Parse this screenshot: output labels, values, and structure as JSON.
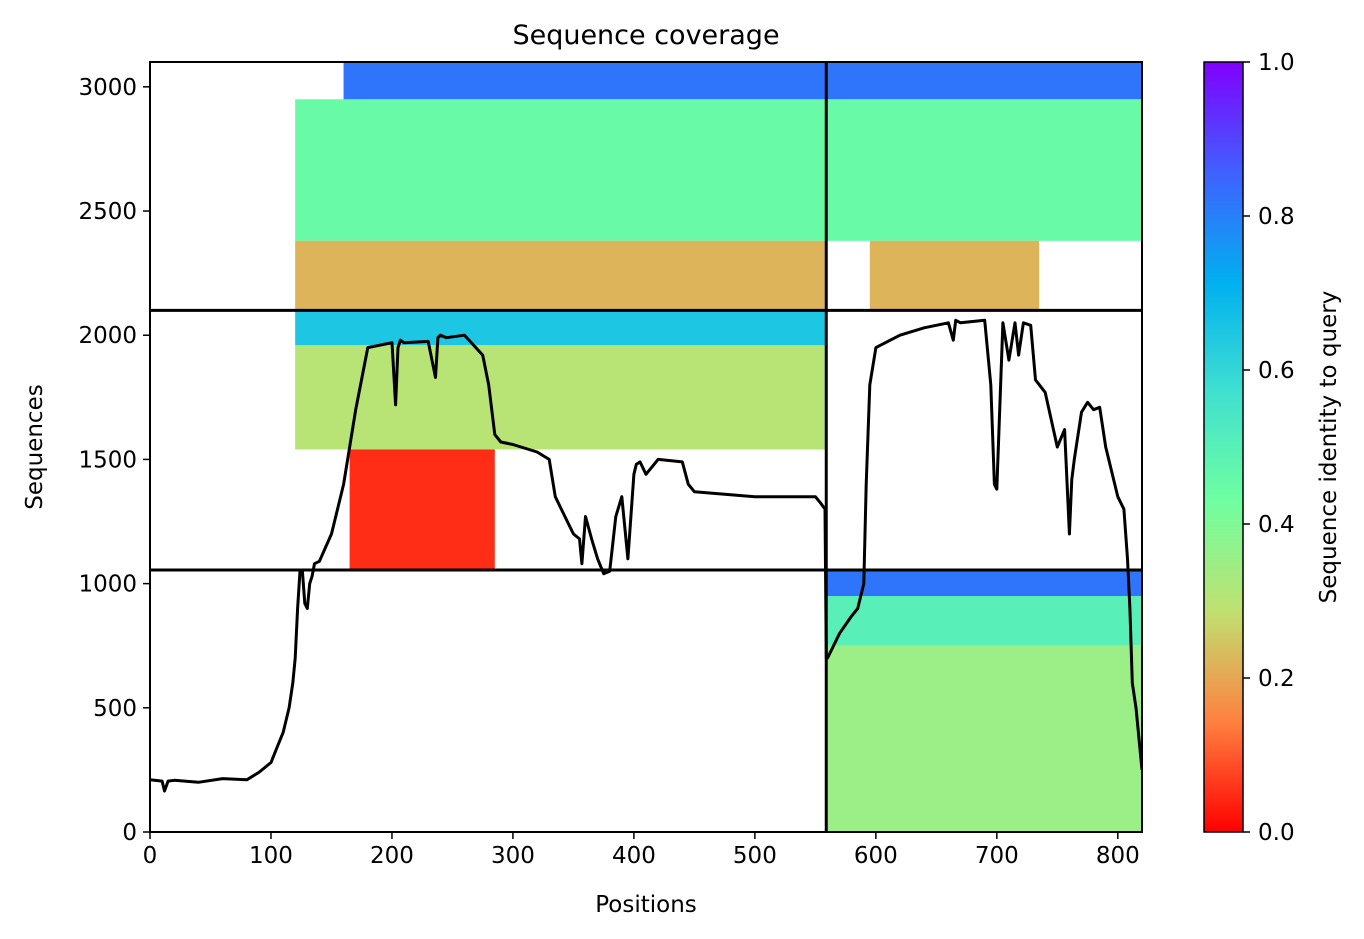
{
  "chart_data": {
    "type": "heatmap",
    "title": "Sequence coverage",
    "xlabel": "Positions",
    "ylabel": "Sequences",
    "colorbar_label": "Sequence identity to query",
    "xlim": [
      0,
      820
    ],
    "ylim": [
      0,
      3100
    ],
    "x_ticks": [
      0,
      100,
      200,
      300,
      400,
      500,
      600,
      700,
      800
    ],
    "y_ticks": [
      0,
      500,
      1000,
      1500,
      2000,
      2500,
      3000
    ],
    "colorbar_range": [
      0.0,
      1.0
    ],
    "colorbar_ticks": [
      0.0,
      0.2,
      0.4,
      0.6,
      0.8,
      1.0
    ],
    "colormap": [
      "#ff0000",
      "#ff8040",
      "#c0e070",
      "#70ffa0",
      "#40e0d0",
      "#00b0f0",
      "#4060ff",
      "#8000ff"
    ],
    "chain_boundaries": {
      "position": 559,
      "sequences": [
        1055,
        2100
      ]
    },
    "blocks": [
      {
        "x": [
          120,
          559
        ],
        "y": [
          2380,
          2950
        ],
        "identity": 0.45
      },
      {
        "x": [
          160,
          559
        ],
        "y": [
          2950,
          3100
        ],
        "identity": 0.82
      },
      {
        "x": [
          120,
          559
        ],
        "y": [
          2100,
          2380
        ],
        "identity": 0.22
      },
      {
        "x": [
          559,
          820
        ],
        "y": [
          2380,
          2950
        ],
        "identity": 0.45
      },
      {
        "x": [
          559,
          820
        ],
        "y": [
          2950,
          3100
        ],
        "identity": 0.82
      },
      {
        "x": [
          595,
          735
        ],
        "y": [
          2100,
          2380
        ],
        "identity": 0.22
      },
      {
        "x": [
          120,
          559
        ],
        "y": [
          1540,
          1960
        ],
        "identity": 0.3
      },
      {
        "x": [
          120,
          559
        ],
        "y": [
          1960,
          2100
        ],
        "identity": 0.65
      },
      {
        "x": [
          165,
          285
        ],
        "y": [
          1055,
          1540
        ],
        "identity": 0.05
      },
      {
        "x": [
          559,
          820
        ],
        "y": [
          0,
          750
        ],
        "identity": 0.35
      },
      {
        "x": [
          559,
          820
        ],
        "y": [
          750,
          950
        ],
        "identity": 0.5
      },
      {
        "x": [
          559,
          820
        ],
        "y": [
          950,
          1055
        ],
        "identity": 0.82
      }
    ],
    "coverage_line": {
      "x": [
        0,
        10,
        12,
        15,
        20,
        40,
        60,
        80,
        90,
        100,
        105,
        110,
        115,
        118,
        120,
        122,
        124,
        126,
        128,
        130,
        132,
        134,
        136,
        140,
        150,
        160,
        170,
        180,
        200,
        203,
        205,
        207,
        210,
        230,
        236,
        238,
        240,
        245,
        260,
        275,
        280,
        285,
        290,
        300,
        320,
        330,
        335,
        340,
        350,
        355,
        357,
        360,
        365,
        370,
        375,
        380,
        385,
        390,
        395,
        400,
        402,
        405,
        410,
        420,
        440,
        445,
        450,
        500,
        550,
        555,
        558,
        559,
        560,
        570,
        580,
        585,
        590,
        592,
        595,
        600,
        620,
        640,
        660,
        664,
        666,
        670,
        690,
        695,
        698,
        700,
        705,
        710,
        715,
        718,
        722,
        728,
        732,
        740,
        750,
        756,
        760,
        762,
        764,
        770,
        775,
        780,
        785,
        790,
        800,
        805,
        808,
        810,
        812,
        815,
        820
      ],
      "y": [
        210,
        205,
        165,
        205,
        208,
        200,
        215,
        210,
        240,
        280,
        340,
        400,
        500,
        600,
        700,
        900,
        1050,
        1050,
        920,
        900,
        1000,
        1030,
        1080,
        1090,
        1200,
        1400,
        1700,
        1950,
        1970,
        1720,
        1950,
        1980,
        1970,
        1975,
        1830,
        1990,
        2000,
        1990,
        2000,
        1920,
        1800,
        1600,
        1570,
        1560,
        1530,
        1500,
        1350,
        1300,
        1200,
        1180,
        1080,
        1270,
        1180,
        1100,
        1040,
        1050,
        1270,
        1350,
        1100,
        1440,
        1480,
        1490,
        1440,
        1500,
        1490,
        1400,
        1370,
        1350,
        1350,
        1320,
        1300,
        700,
        700,
        800,
        870,
        900,
        1000,
        1400,
        1800,
        1950,
        2000,
        2030,
        2050,
        1980,
        2060,
        2050,
        2060,
        1800,
        1400,
        1380,
        2050,
        1900,
        2050,
        1920,
        2050,
        2040,
        1820,
        1770,
        1550,
        1620,
        1200,
        1420,
        1500,
        1690,
        1730,
        1700,
        1710,
        1550,
        1350,
        1300,
        1100,
        900,
        600,
        500,
        250
      ]
    }
  }
}
